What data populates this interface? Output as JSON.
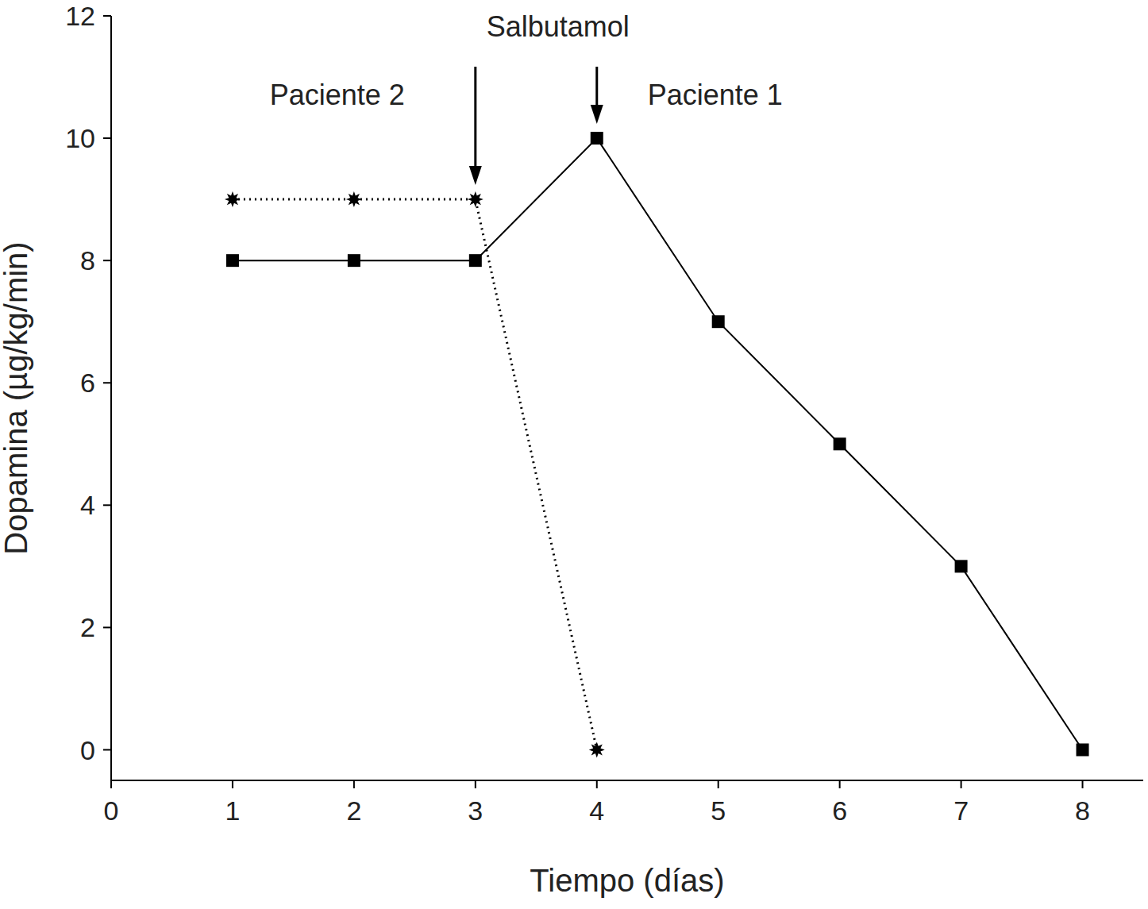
{
  "chart_data": {
    "type": "line",
    "x_label": "Tiempo (días)",
    "y_label": "Dopamina (µg/kg/min)",
    "annotations": [
      {
        "text": "Salbutamol"
      }
    ],
    "xlim": [
      0,
      8.5
    ],
    "xticks": [
      0,
      1,
      2,
      3,
      4,
      5,
      6,
      7,
      8
    ],
    "ylim": [
      -0.5,
      12
    ],
    "yticks": [
      0,
      2,
      4,
      6,
      8,
      10,
      12
    ],
    "series": [
      {
        "name": "Paciente 1",
        "x": [
          1,
          2,
          3,
          4,
          5,
          6,
          7,
          8
        ],
        "values": [
          8,
          8,
          8,
          10,
          7,
          5,
          3,
          0
        ],
        "color": "#000000",
        "marker": "square",
        "line_style": "solid",
        "salbutamol_day": 4
      },
      {
        "name": "Paciente 2",
        "x": [
          1,
          2,
          3,
          4
        ],
        "values": [
          9,
          9,
          9,
          0
        ],
        "color": "#000000",
        "marker": "star",
        "line_style": "dotted",
        "salbutamol_day": 3
      }
    ]
  }
}
